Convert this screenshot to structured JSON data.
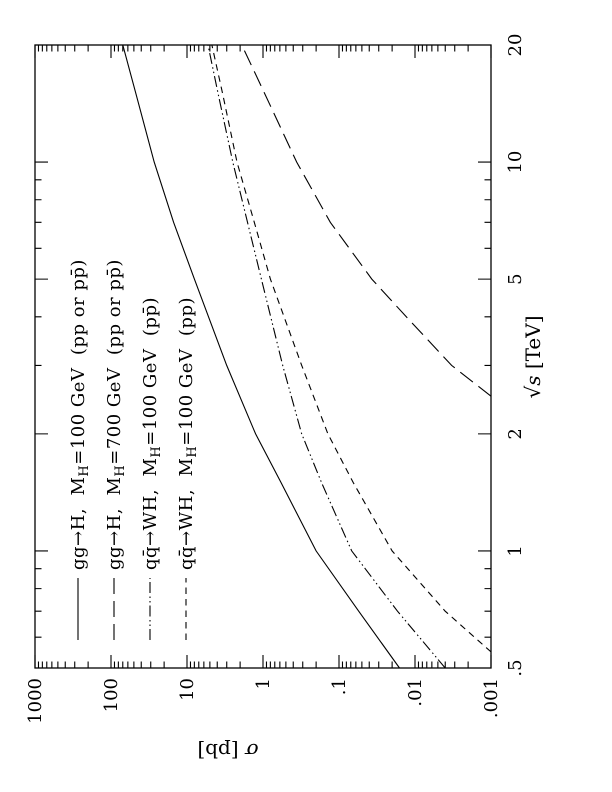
{
  "page": {
    "background": "#ffffff",
    "ink_color": "#000000"
  },
  "chart_data": {
    "type": "line",
    "title": "",
    "xlabel": "√s [TeV]",
    "ylabel": "σ [pb]",
    "xlabel_parts": [
      {
        "t": "√"
      },
      {
        "t": "s",
        "italic": true
      },
      {
        "t": " [TeV]"
      }
    ],
    "ylabel_parts": [
      {
        "t": "σ",
        "italic": true
      },
      {
        "t": " [pb]"
      }
    ],
    "grid": false,
    "legend_position": "upper-left",
    "x_axis": {
      "scale": "log",
      "min": 0.5,
      "max": 20,
      "major_ticks": [
        0.5,
        1,
        2,
        5,
        10,
        20
      ],
      "major_tick_labels": [
        ".5",
        "1",
        "2",
        "5",
        "10",
        "20"
      ],
      "minor_ticks": [
        0.6,
        0.7,
        0.8,
        0.9,
        3,
        4,
        6,
        7,
        8,
        9
      ]
    },
    "y_axis": {
      "scale": "log",
      "min": 0.001,
      "max": 1000,
      "major_ticks": [
        1000,
        100,
        10,
        1,
        0.1,
        0.01,
        0.001
      ],
      "major_tick_labels": [
        "1000",
        "100",
        "10",
        "1",
        ".1",
        ".01",
        ".001"
      ],
      "minor_tick_multipliers": [
        2,
        3,
        4,
        5,
        6,
        7,
        8,
        9
      ]
    },
    "series": [
      {
        "id": "ggH-100",
        "style": "solid",
        "label": "gg→H,  M_H=100 GeV  (pp or pp̄)",
        "label_parts": [
          {
            "t": "gg→H,  M"
          },
          {
            "t": "H",
            "sub": true
          },
          {
            "t": "=100 GeV  (pp or pp̄)"
          }
        ],
        "x": [
          0.5,
          0.7,
          1,
          1.5,
          2,
          3,
          5,
          7,
          10,
          15,
          20
        ],
        "y": [
          0.016,
          0.055,
          0.2,
          0.58,
          1.25,
          3.0,
          8.0,
          15,
          27,
          47,
          70
        ]
      },
      {
        "id": "ggH-700",
        "style": "long-dash",
        "label": "gg→H,  M_H=700 GeV  (pp or pp̄)",
        "label_parts": [
          {
            "t": "gg→H,  M"
          },
          {
            "t": "H",
            "sub": true
          },
          {
            "t": "=700 GeV  (pp or pp̄)"
          }
        ],
        "x": [
          2.5,
          3,
          4,
          5,
          7,
          10,
          15,
          20
        ],
        "y": [
          0.001,
          0.0033,
          0.013,
          0.037,
          0.13,
          0.36,
          0.95,
          1.9
        ]
      },
      {
        "id": "WH-ppbar",
        "style": "dash-dot-dot",
        "label": "qq̄→WH,  M_H=100 GeV  (pp̄)",
        "label_parts": [
          {
            "t": "qq̄→WH,  M"
          },
          {
            "t": "H",
            "sub": true
          },
          {
            "t": "=100 GeV  (pp̄)"
          }
        ],
        "x": [
          0.5,
          0.7,
          1,
          1.5,
          2,
          3,
          5,
          7,
          10,
          15,
          20
        ],
        "y": [
          0.004,
          0.017,
          0.068,
          0.17,
          0.31,
          0.55,
          1.05,
          1.6,
          2.5,
          3.9,
          5.3
        ]
      },
      {
        "id": "WH-pp",
        "style": "dash",
        "label": "qq̄→WH,  M_H=100 GeV  (pp)",
        "label_parts": [
          {
            "t": "qq̄→WH,  M"
          },
          {
            "t": "H",
            "sub": true
          },
          {
            "t": "=100 GeV  (pp)"
          }
        ],
        "x": [
          0.55,
          0.7,
          1,
          1.5,
          2,
          3,
          5,
          7,
          10,
          15,
          20
        ],
        "y": [
          0.001,
          0.004,
          0.02,
          0.065,
          0.14,
          0.31,
          0.8,
          1.3,
          2.2,
          3.4,
          4.7
        ]
      }
    ]
  }
}
